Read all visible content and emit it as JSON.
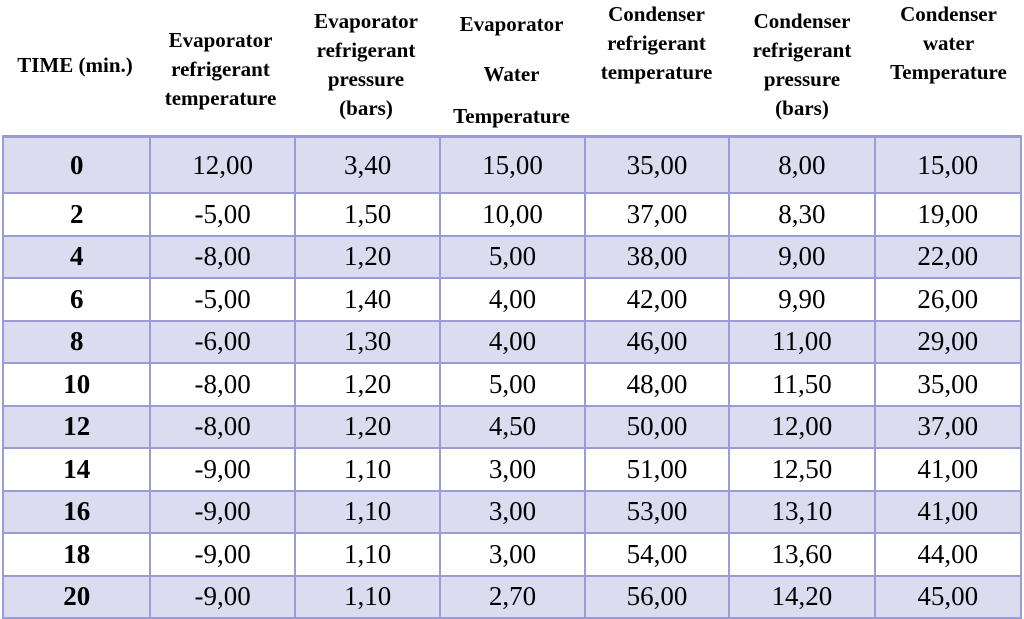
{
  "headers": [
    [
      "TIME (min.)"
    ],
    [
      "Evaporator",
      "refrigerant",
      "temperature"
    ],
    [
      "Evaporator",
      "refrigerant",
      "pressure",
      "(bars)"
    ],
    [
      "Evaporator",
      "",
      "Water",
      "",
      "Temperature"
    ],
    [
      "Condenser",
      "refrigerant",
      "temperature"
    ],
    [
      "Condenser",
      "refrigerant",
      "pressure",
      "(bars)"
    ],
    [
      "Condenser",
      "water",
      "Temperature"
    ]
  ],
  "rows": [
    [
      "0",
      "12,00",
      "3,40",
      "15,00",
      "35,00",
      "8,00",
      "15,00"
    ],
    [
      "2",
      "-5,00",
      "1,50",
      "10,00",
      "37,00",
      "8,30",
      "19,00"
    ],
    [
      "4",
      "-8,00",
      "1,20",
      "5,00",
      "38,00",
      "9,00",
      "22,00"
    ],
    [
      "6",
      "-5,00",
      "1,40",
      "4,00",
      "42,00",
      "9,90",
      "26,00"
    ],
    [
      "8",
      "-6,00",
      "1,30",
      "4,00",
      "46,00",
      "11,00",
      "29,00"
    ],
    [
      "10",
      "-8,00",
      "1,20",
      "5,00",
      "48,00",
      "11,50",
      "35,00"
    ],
    [
      "12",
      "-8,00",
      "1,20",
      "4,50",
      "50,00",
      "12,00",
      "37,00"
    ],
    [
      "14",
      "-9,00",
      "1,10",
      "3,00",
      "51,00",
      "12,50",
      "41,00"
    ],
    [
      "16",
      "-9,00",
      "1,10",
      "3,00",
      "53,00",
      "13,10",
      "41,00"
    ],
    [
      "18",
      "-9,00",
      "1,10",
      "3,00",
      "54,00",
      "13,60",
      "44,00"
    ],
    [
      "20",
      "-9,00",
      "1,10",
      "2,70",
      "56,00",
      "14,20",
      "45,00"
    ]
  ],
  "colors": {
    "shaded_row": "#dcdcf0",
    "grid": "#9b9bd6"
  }
}
